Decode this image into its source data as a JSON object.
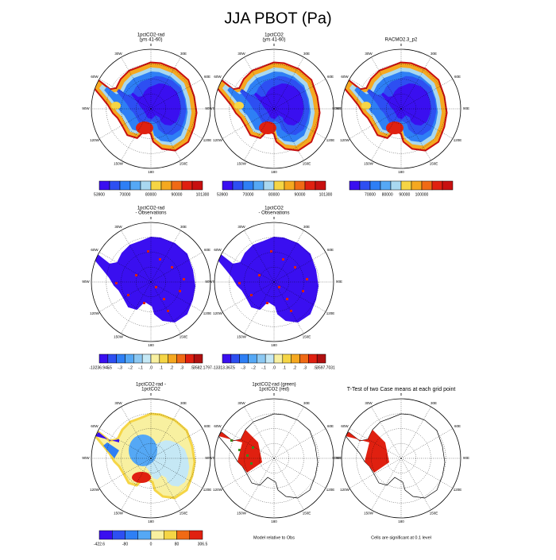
{
  "title": "JJA PBOT (Pa)",
  "lon_labels": [
    "0",
    "30E",
    "60E",
    "90E",
    "120E",
    "150E",
    "180",
    "150W",
    "120W",
    "90W",
    "60W",
    "30W"
  ],
  "panels": [
    {
      "title": [
        "1pctCO2-rad",
        "(yrs 41-60)"
      ],
      "colorbar": {
        "labels": [
          "53900",
          "70000",
          "80000",
          "90000",
          "101300"
        ],
        "colors": [
          "#3a0ff0",
          "#2d4ff2",
          "#2e7ff5",
          "#55a8f5",
          "#a9d8f0",
          "#f5d545",
          "#f5a820",
          "#f06a15",
          "#e02010",
          "#c81010"
        ]
      }
    },
    {
      "title": [
        "1pctCO2",
        "(yrs 41-60)"
      ],
      "colorbar": {
        "labels": [
          "53900",
          "70000",
          "80000",
          "90000",
          "101300"
        ],
        "colors": [
          "#3a0ff0",
          "#2d4ff2",
          "#2e7ff5",
          "#55a8f5",
          "#a9d8f0",
          "#f5d545",
          "#f5a820",
          "#f06a15",
          "#e02010",
          "#c81010"
        ]
      }
    },
    {
      "title": [
        "RACMO2.3_p2"
      ],
      "colorbar": {
        "labels": [
          "70000",
          "80000",
          "90000",
          "100000"
        ],
        "colors": [
          "#3a0ff0",
          "#2d4ff2",
          "#2e7ff5",
          "#55a8f5",
          "#a9d8f0",
          "#f5d545",
          "#f5a820",
          "#f06a15",
          "#e02010",
          "#c81010"
        ]
      }
    },
    {
      "title": [
        "1pctCO2-rad",
        "- Observations"
      ],
      "colorbar": {
        "labels": [
          "-13236.945",
          "-.5",
          "-.3",
          "-.2",
          "-.1",
          ".0",
          ".1",
          ".2",
          ".3",
          ".5",
          "3582.1797"
        ],
        "colors": [
          "#3a0ff0",
          "#2d4ff2",
          "#2e7ff5",
          "#55a8f5",
          "#8cc8f2",
          "#c5e8f5",
          "#f8f0a0",
          "#f5d545",
          "#f5a820",
          "#f06a15",
          "#e02010",
          "#b01010"
        ]
      }
    },
    {
      "title": [
        "1pctCO2",
        "- Observations"
      ],
      "colorbar": {
        "labels": [
          "-13313.367",
          "-.5",
          "-.3",
          "-.2",
          "-.1",
          ".0",
          ".1",
          ".2",
          ".3",
          ".5",
          "3597.7031"
        ],
        "colors": [
          "#3a0ff0",
          "#2d4ff2",
          "#2e7ff5",
          "#55a8f5",
          "#8cc8f2",
          "#c5e8f5",
          "#f8f0a0",
          "#f5d545",
          "#f5a820",
          "#f06a15",
          "#e02010",
          "#b01010"
        ]
      }
    },
    {
      "title": [
        "1pctCO2-rad -",
        "1pctCO2"
      ],
      "colorbar": {
        "labels": [
          "-422.6",
          "-80",
          "0",
          "80",
          "306.5"
        ],
        "colors": [
          "#3a0ff0",
          "#2d4ff2",
          "#2e7ff5",
          "#55a8f5",
          "#f8f0a0",
          "#f5d545",
          "#f06a15",
          "#e02010"
        ]
      }
    },
    {
      "title": [
        "1pctCO2-rad (green)",
        "1pctCO2 (red)"
      ],
      "footer": "Model relative to Obs"
    },
    {
      "title": [
        "T-Test of two Case means at each grid point"
      ],
      "footer": "Cells are significant at 0.1 level"
    }
  ]
}
